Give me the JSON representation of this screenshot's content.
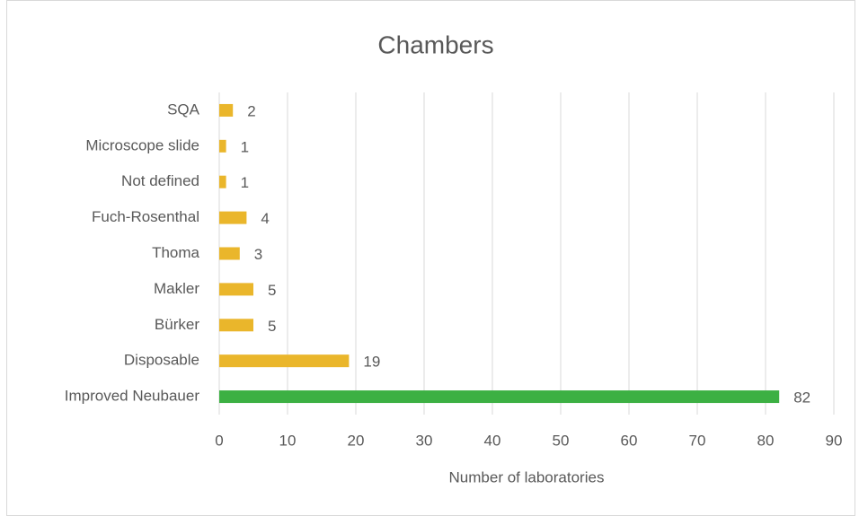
{
  "chart_data": {
    "type": "barh",
    "title": "Chambers",
    "xlabel": "Number of laboratories",
    "categories": [
      "Improved Neubauer",
      "Disposable",
      "Bürker",
      "Makler",
      "Thoma",
      "Fuch-Rosenthal",
      "Not defined",
      "Microscope slide",
      "SQA"
    ],
    "values": [
      82,
      19,
      5,
      5,
      3,
      4,
      1,
      1,
      2
    ],
    "colors": [
      "#3cb043",
      "#eab62b",
      "#eab62b",
      "#eab62b",
      "#eab62b",
      "#eab62b",
      "#eab62b",
      "#eab62b",
      "#eab62b"
    ],
    "xlim": [
      0,
      90
    ],
    "xticks": [
      0,
      10,
      20,
      30,
      40,
      50,
      60,
      70,
      80,
      90
    ],
    "grid": true
  }
}
